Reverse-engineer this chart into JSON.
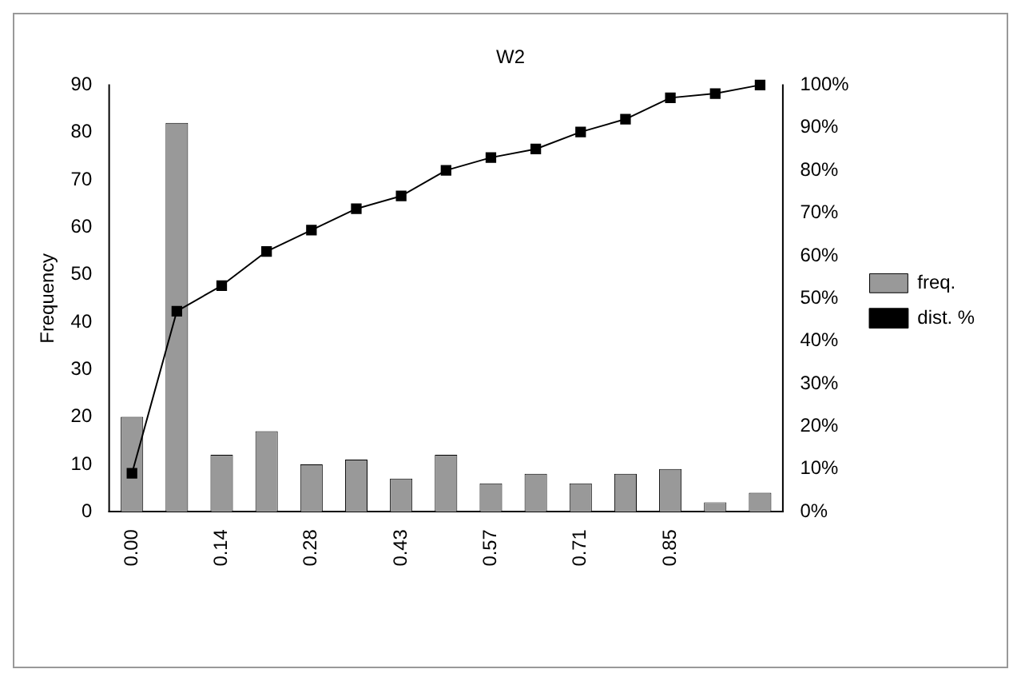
{
  "chart_data": {
    "type": "bar",
    "title": "W2",
    "ylabel": "Frequency",
    "categories": [
      "0.00",
      null,
      "0.14",
      null,
      "0.28",
      null,
      "0.43",
      null,
      "0.57",
      null,
      "0.71",
      null,
      "0.85",
      null,
      null
    ],
    "series": [
      {
        "name": "freq.",
        "color": "#999999",
        "values": [
          20,
          82,
          12,
          17,
          10,
          11,
          7,
          12,
          6,
          8,
          6,
          8,
          9,
          2,
          4
        ]
      },
      {
        "name": "dist. %",
        "type": "line",
        "axis": "y2",
        "color": "#000000",
        "marker": "square",
        "values": [
          9,
          47,
          53,
          61,
          66,
          71,
          74,
          80,
          83,
          85,
          89,
          92,
          97,
          98,
          100
        ]
      }
    ],
    "ylim": [
      0,
      90
    ],
    "yticks": [
      0,
      10,
      20,
      30,
      40,
      50,
      60,
      70,
      80,
      90
    ],
    "y2lim": [
      0,
      100
    ],
    "y2ticks": [
      {
        "value": 0,
        "label": "0%"
      },
      {
        "value": 10,
        "label": "10%"
      },
      {
        "value": 20,
        "label": "20%"
      },
      {
        "value": 30,
        "label": "30%"
      },
      {
        "value": 40,
        "label": "40%"
      },
      {
        "value": 50,
        "label": "50%"
      },
      {
        "value": 60,
        "label": "60%"
      },
      {
        "value": 70,
        "label": "70%"
      },
      {
        "value": 80,
        "label": "80%"
      },
      {
        "value": 90,
        "label": "90%"
      },
      {
        "value": 100,
        "label": "100%"
      }
    ],
    "grid": false,
    "legend": "right"
  }
}
